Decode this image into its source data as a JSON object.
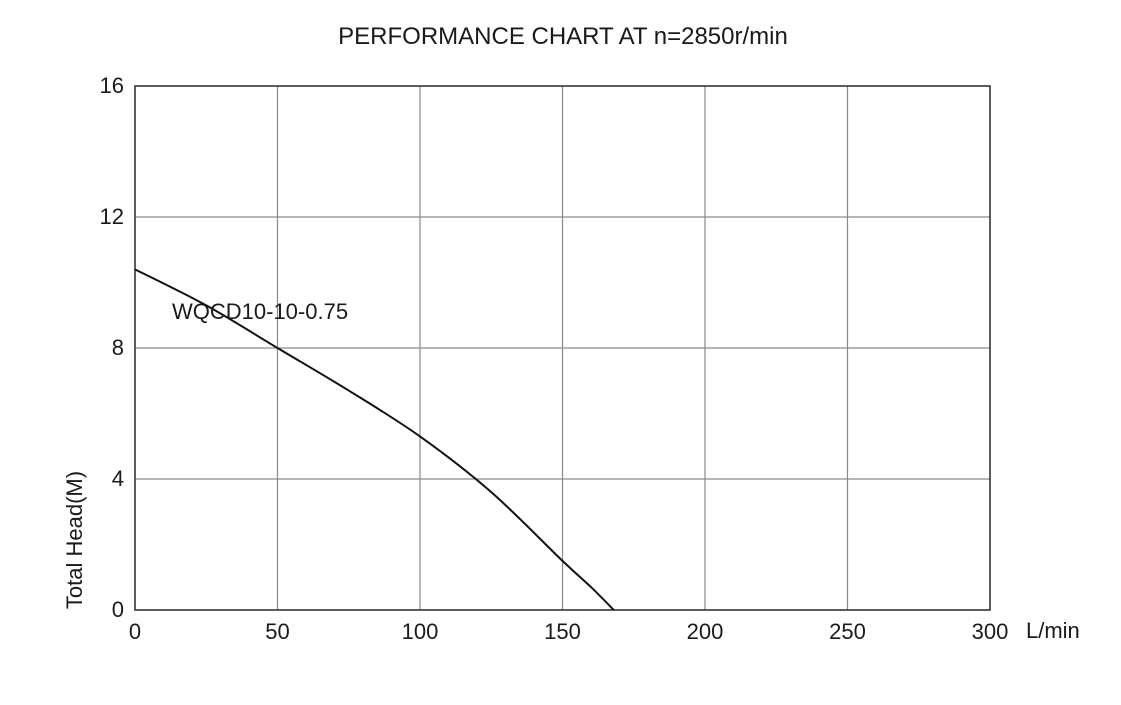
{
  "chart_data": {
    "type": "line",
    "title": "PERFORMANCE CHART AT n=2850r/min",
    "xlabel": "L/min",
    "ylabel": "Total Head(M)",
    "xlim": [
      0,
      300
    ],
    "ylim": [
      0,
      16
    ],
    "x_ticks": [
      "0",
      "50",
      "100",
      "150",
      "200",
      "250",
      "300"
    ],
    "y_ticks": [
      "0",
      "4",
      "8",
      "12",
      "16"
    ],
    "grid": true,
    "series": [
      {
        "name": "WQCD10-10-0.75",
        "x": [
          0,
          25,
          50,
          75,
          100,
          125,
          150,
          160,
          168
        ],
        "y": [
          10.4,
          9.3,
          8.0,
          6.7,
          5.3,
          3.6,
          1.5,
          0.7,
          0
        ]
      }
    ]
  },
  "colors": {
    "grid": "#8a8a8a",
    "axis": "#3a3a3a",
    "line": "#111111"
  }
}
